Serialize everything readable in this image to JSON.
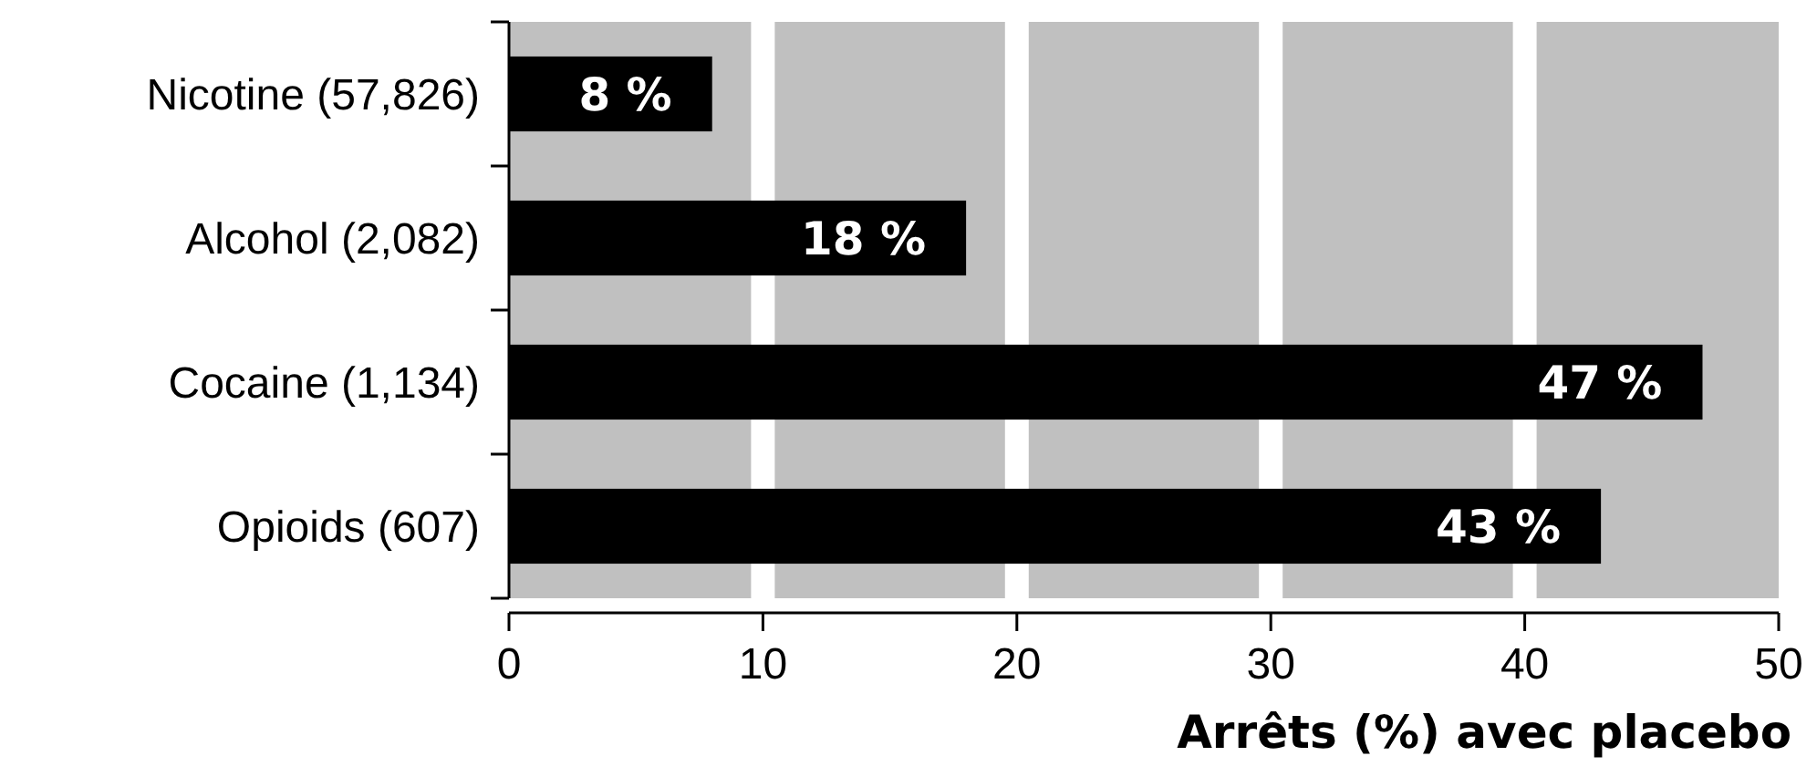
{
  "chart_data": {
    "type": "bar",
    "orientation": "horizontal",
    "categories": [
      "Nicotine (57,826)",
      "Alcohol (2,082)",
      "Cocaine (1,134)",
      "Opioids (607)"
    ],
    "values": [
      8,
      18,
      47,
      43
    ],
    "value_labels": [
      "8 %",
      "18 %",
      "47 %",
      "43 %"
    ],
    "color": "#000000",
    "xlim": [
      0,
      50
    ],
    "xticks": [
      0,
      10,
      20,
      30,
      40,
      50
    ],
    "xlabel": "Arrêts (%) avec placebo",
    "grid": "x"
  }
}
